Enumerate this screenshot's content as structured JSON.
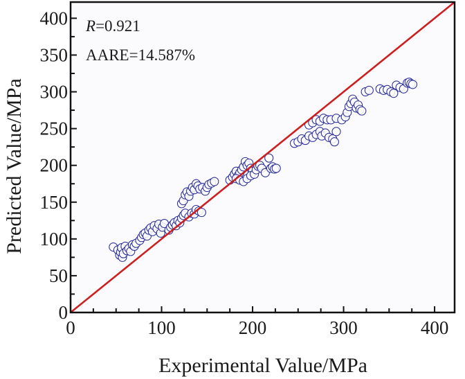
{
  "chart_data": {
    "type": "scatter",
    "title": "",
    "xlabel": "Experimental Value/MPa",
    "ylabel": "Predicted Value/MPa",
    "xlim": [
      0,
      422
    ],
    "ylim": [
      0,
      422
    ],
    "x_ticks": [
      "0",
      "100",
      "200",
      "300",
      "400"
    ],
    "y_ticks": [
      "0",
      "50",
      "100",
      "150",
      "200",
      "250",
      "300",
      "350",
      "400"
    ],
    "grid": false,
    "annotations": {
      "r_symbol": "R",
      "r_value": "=0.921",
      "aare": "AARE=14.587%"
    },
    "reference_line": {
      "name": "y=x",
      "color": "#cc1f1f"
    },
    "marker_color": "#2b2f9a",
    "series": [
      {
        "name": "data",
        "points": [
          [
            47,
            89
          ],
          [
            52,
            85
          ],
          [
            54,
            78
          ],
          [
            55,
            82
          ],
          [
            56,
            88
          ],
          [
            57,
            75
          ],
          [
            58,
            80
          ],
          [
            60,
            90
          ],
          [
            62,
            84
          ],
          [
            64,
            87
          ],
          [
            66,
            83
          ],
          [
            68,
            92
          ],
          [
            70,
            90
          ],
          [
            72,
            94
          ],
          [
            76,
            98
          ],
          [
            78,
            102
          ],
          [
            80,
            106
          ],
          [
            82,
            108
          ],
          [
            84,
            104
          ],
          [
            86,
            112
          ],
          [
            88,
            115
          ],
          [
            90,
            110
          ],
          [
            92,
            118
          ],
          [
            95,
            114
          ],
          [
            97,
            120
          ],
          [
            99,
            108
          ],
          [
            101,
            116
          ],
          [
            103,
            121
          ],
          [
            108,
            112
          ],
          [
            110,
            116
          ],
          [
            112,
            119
          ],
          [
            114,
            122
          ],
          [
            116,
            118
          ],
          [
            118,
            125
          ],
          [
            120,
            122
          ],
          [
            122,
            128
          ],
          [
            124,
            132
          ],
          [
            126,
            135
          ],
          [
            122,
            148
          ],
          [
            124,
            152
          ],
          [
            126,
            160
          ],
          [
            128,
            164
          ],
          [
            130,
            158
          ],
          [
            132,
            165
          ],
          [
            134,
            170
          ],
          [
            136,
            167
          ],
          [
            138,
            175
          ],
          [
            140,
            172
          ],
          [
            142,
            168
          ],
          [
            145,
            170
          ],
          [
            148,
            165
          ],
          [
            130,
            130
          ],
          [
            133,
            135
          ],
          [
            136,
            134
          ],
          [
            138,
            140
          ],
          [
            141,
            138
          ],
          [
            144,
            136
          ],
          [
            150,
            170
          ],
          [
            152,
            174
          ],
          [
            155,
            176
          ],
          [
            158,
            178
          ],
          [
            175,
            180
          ],
          [
            178,
            184
          ],
          [
            180,
            188
          ],
          [
            182,
            192
          ],
          [
            184,
            186
          ],
          [
            186,
            190
          ],
          [
            188,
            194
          ],
          [
            190,
            198
          ],
          [
            192,
            205
          ],
          [
            194,
            200
          ],
          [
            196,
            203
          ],
          [
            198,
            196
          ],
          [
            200,
            192
          ],
          [
            182,
            182
          ],
          [
            186,
            180
          ],
          [
            190,
            178
          ],
          [
            194,
            182
          ],
          [
            198,
            186
          ],
          [
            202,
            188
          ],
          [
            204,
            194
          ],
          [
            206,
            199
          ],
          [
            208,
            200
          ],
          [
            210,
            196
          ],
          [
            214,
            190
          ],
          [
            218,
            210
          ],
          [
            220,
            196
          ],
          [
            222,
            198
          ],
          [
            224,
            195
          ],
          [
            226,
            196
          ],
          [
            246,
            230
          ],
          [
            250,
            232
          ],
          [
            254,
            236
          ],
          [
            258,
            234
          ],
          [
            262,
            240
          ],
          [
            266,
            238
          ],
          [
            270,
            242
          ],
          [
            274,
            246
          ],
          [
            276,
            240
          ],
          [
            280,
            244
          ],
          [
            284,
            238
          ],
          [
            288,
            236
          ],
          [
            290,
            232
          ],
          [
            292,
            246
          ],
          [
            262,
            255
          ],
          [
            266,
            258
          ],
          [
            270,
            262
          ],
          [
            274,
            260
          ],
          [
            278,
            264
          ],
          [
            282,
            262
          ],
          [
            286,
            262
          ],
          [
            292,
            264
          ],
          [
            298,
            262
          ],
          [
            302,
            266
          ],
          [
            304,
            272
          ],
          [
            306,
            280
          ],
          [
            308,
            284
          ],
          [
            310,
            290
          ],
          [
            312,
            286
          ],
          [
            314,
            278
          ],
          [
            316,
            282
          ],
          [
            318,
            276
          ],
          [
            320,
            274
          ],
          [
            324,
            300
          ],
          [
            328,
            302
          ],
          [
            340,
            304
          ],
          [
            344,
            302
          ],
          [
            348,
            303
          ],
          [
            352,
            300
          ],
          [
            355,
            298
          ],
          [
            358,
            309
          ],
          [
            362,
            306
          ],
          [
            366,
            304
          ],
          [
            370,
            312
          ],
          [
            372,
            313
          ],
          [
            374,
            311
          ],
          [
            376,
            310
          ]
        ]
      }
    ]
  }
}
